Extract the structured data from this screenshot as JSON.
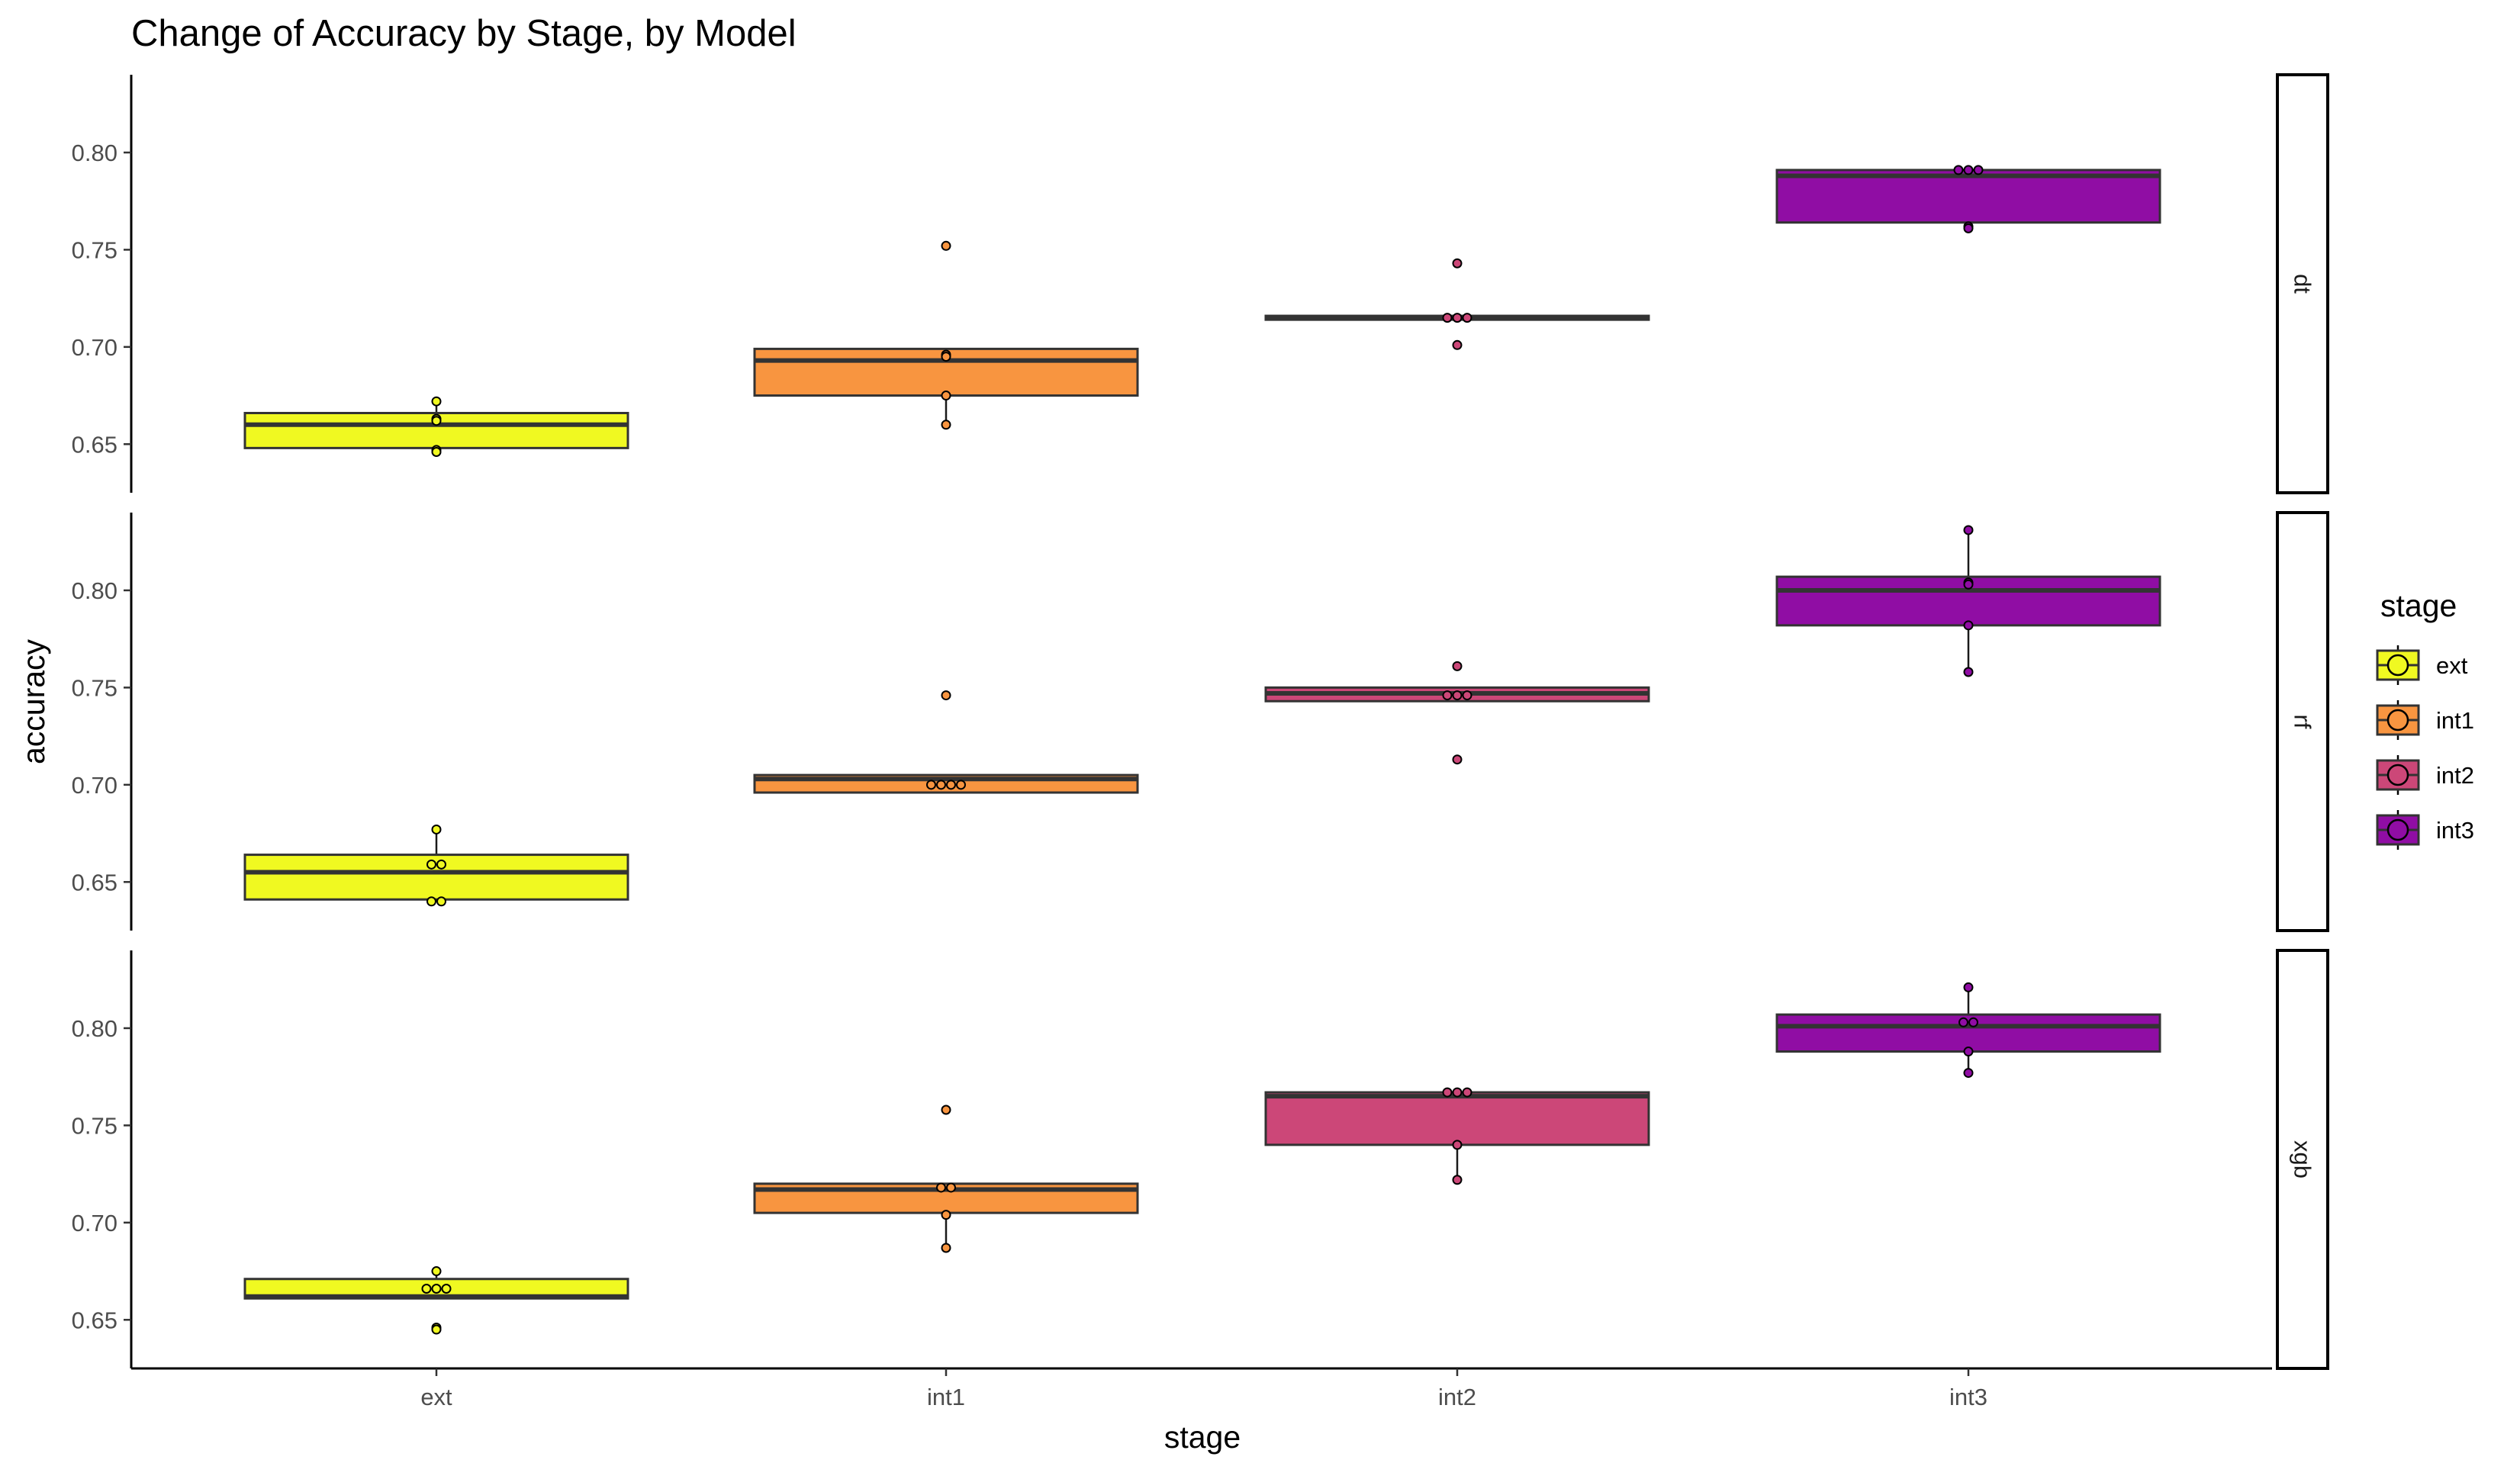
{
  "chart_data": {
    "type": "boxplot",
    "title": "Change of Accuracy by Stage, by Model",
    "xlabel": "stage",
    "ylabel": "accuracy",
    "categories": [
      "ext",
      "int1",
      "int2",
      "int3"
    ],
    "facet_by": "model",
    "facets": [
      "dt",
      "rf",
      "xgb"
    ],
    "ylim": [
      0.625,
      0.84
    ],
    "yticks": [
      0.65,
      0.7,
      0.75,
      0.8
    ],
    "ytick_labels": [
      "0.65",
      "0.70",
      "0.75",
      "0.80"
    ],
    "legend": {
      "title": "stage",
      "placement": "right",
      "entries": [
        {
          "label": "ext",
          "color": "#F0F921"
        },
        {
          "label": "int1",
          "color": "#F89540"
        },
        {
          "label": "int2",
          "color": "#CC4778"
        },
        {
          "label": "int3",
          "color": "#900DA4"
        }
      ]
    },
    "panels": [
      {
        "facet": "dt",
        "boxes": [
          {
            "stage": "ext",
            "lower": 0.647,
            "q1": 0.648,
            "median": 0.66,
            "q3": 0.666,
            "upper": 0.672,
            "points": [
              0.672,
              0.663,
              0.662,
              0.647,
              0.646
            ]
          },
          {
            "stage": "int1",
            "lower": 0.66,
            "q1": 0.675,
            "median": 0.693,
            "q3": 0.699,
            "upper": 0.699,
            "points": [
              0.752,
              0.696,
              0.695,
              0.675,
              0.66
            ]
          },
          {
            "stage": "int2",
            "lower": 0.714,
            "q1": 0.714,
            "median": 0.715,
            "q3": 0.716,
            "upper": 0.716,
            "points": [
              0.743,
              0.715,
              0.715,
              0.715,
              0.701
            ]
          },
          {
            "stage": "int3",
            "lower": 0.762,
            "q1": 0.764,
            "median": 0.788,
            "q3": 0.791,
            "upper": 0.791,
            "points": [
              0.791,
              0.791,
              0.791,
              0.762,
              0.761
            ]
          }
        ]
      },
      {
        "facet": "rf",
        "boxes": [
          {
            "stage": "ext",
            "lower": 0.64,
            "q1": 0.641,
            "median": 0.655,
            "q3": 0.664,
            "upper": 0.677,
            "points": [
              0.677,
              0.659,
              0.659,
              0.64,
              0.64
            ]
          },
          {
            "stage": "int1",
            "lower": 0.696,
            "q1": 0.696,
            "median": 0.703,
            "q3": 0.705,
            "upper": 0.705,
            "points": [
              0.746,
              0.7,
              0.7,
              0.7,
              0.7
            ]
          },
          {
            "stage": "int2",
            "lower": 0.743,
            "q1": 0.743,
            "median": 0.747,
            "q3": 0.75,
            "upper": 0.75,
            "points": [
              0.761,
              0.746,
              0.746,
              0.746,
              0.713
            ]
          },
          {
            "stage": "int3",
            "lower": 0.758,
            "q1": 0.782,
            "median": 0.8,
            "q3": 0.807,
            "upper": 0.831,
            "points": [
              0.831,
              0.804,
              0.803,
              0.782,
              0.758
            ]
          }
        ]
      },
      {
        "facet": "xgb",
        "boxes": [
          {
            "stage": "ext",
            "lower": 0.661,
            "q1": 0.661,
            "median": 0.662,
            "q3": 0.671,
            "upper": 0.675,
            "points": [
              0.675,
              0.666,
              0.666,
              0.666,
              0.646,
              0.645
            ]
          },
          {
            "stage": "int1",
            "lower": 0.687,
            "q1": 0.705,
            "median": 0.717,
            "q3": 0.72,
            "upper": 0.72,
            "points": [
              0.758,
              0.718,
              0.718,
              0.704,
              0.687
            ]
          },
          {
            "stage": "int2",
            "lower": 0.722,
            "q1": 0.74,
            "median": 0.765,
            "q3": 0.767,
            "upper": 0.767,
            "points": [
              0.767,
              0.767,
              0.767,
              0.74,
              0.722
            ]
          },
          {
            "stage": "int3",
            "lower": 0.777,
            "q1": 0.788,
            "median": 0.801,
            "q3": 0.807,
            "upper": 0.821,
            "points": [
              0.821,
              0.803,
              0.803,
              0.788,
              0.777
            ]
          }
        ]
      }
    ]
  }
}
